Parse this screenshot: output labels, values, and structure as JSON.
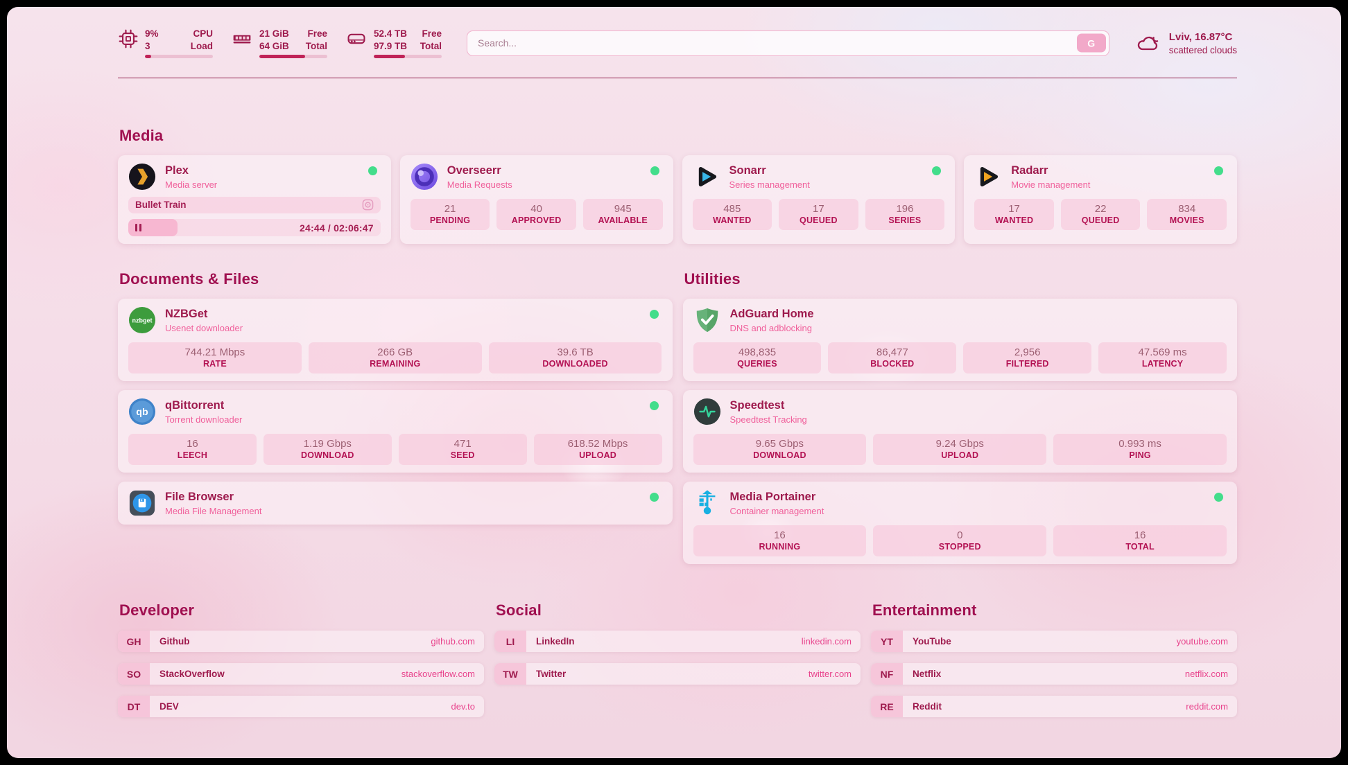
{
  "system_widgets": {
    "cpu": {
      "value_top": "9%",
      "value_bottom": "3",
      "label_top": "CPU",
      "label_bottom": "Load",
      "bar_pct": 9
    },
    "memory": {
      "value_top": "21 GiB",
      "value_bottom": "64 GiB",
      "label_top": "Free",
      "label_bottom": "Total",
      "bar_pct": 67
    },
    "disk": {
      "value_top": "52.4 TB",
      "value_bottom": "97.9 TB",
      "label_top": "Free",
      "label_bottom": "Total",
      "bar_pct": 46
    }
  },
  "search": {
    "placeholder": "Search...",
    "provider_button": "G"
  },
  "weather": {
    "location_temp": "Lviv, 16.87°C",
    "condition": "scattered clouds"
  },
  "service_groups": [
    {
      "title": "Media",
      "cards": [
        {
          "icon": "plex-icon",
          "title": "Plex",
          "subtitle": "Media server",
          "online": true,
          "now_playing": {
            "title": "Bullet Train",
            "time": "24:44 / 02:06:47",
            "progress_pct": 19.5
          }
        },
        {
          "icon": "overseerr-icon",
          "title": "Overseerr",
          "subtitle": "Media Requests",
          "online": true,
          "stats": [
            {
              "value": "21",
              "label": "PENDING"
            },
            {
              "value": "40",
              "label": "APPROVED"
            },
            {
              "value": "945",
              "label": "AVAILABLE"
            }
          ]
        },
        {
          "icon": "sonarr-icon",
          "title": "Sonarr",
          "subtitle": "Series management",
          "online": true,
          "stats": [
            {
              "value": "485",
              "label": "WANTED"
            },
            {
              "value": "17",
              "label": "QUEUED"
            },
            {
              "value": "196",
              "label": "SERIES"
            }
          ]
        },
        {
          "icon": "radarr-icon",
          "title": "Radarr",
          "subtitle": "Movie management",
          "online": true,
          "stats": [
            {
              "value": "17",
              "label": "WANTED"
            },
            {
              "value": "22",
              "label": "QUEUED"
            },
            {
              "value": "834",
              "label": "MOVIES"
            }
          ]
        }
      ]
    },
    {
      "title": "Documents & Files",
      "cards": [
        {
          "icon": "nzbget-icon",
          "title": "NZBGet",
          "subtitle": "Usenet downloader",
          "online": true,
          "stats": [
            {
              "value": "744.21 Mbps",
              "label": "RATE"
            },
            {
              "value": "266 GB",
              "label": "REMAINING"
            },
            {
              "value": "39.6 TB",
              "label": "DOWNLOADED"
            }
          ]
        },
        {
          "icon": "qbittorrent-icon",
          "title": "qBittorrent",
          "subtitle": "Torrent downloader",
          "online": true,
          "stats": [
            {
              "value": "16",
              "label": "LEECH"
            },
            {
              "value": "1.19 Gbps",
              "label": "DOWNLOAD"
            },
            {
              "value": "471",
              "label": "SEED"
            },
            {
              "value": "618.52 Mbps",
              "label": "UPLOAD"
            }
          ]
        },
        {
          "icon": "filebrowser-icon",
          "title": "File Browser",
          "subtitle": "Media File Management",
          "online": true,
          "stats": []
        }
      ]
    },
    {
      "title": "Utilities",
      "cards": [
        {
          "icon": "adguard-icon",
          "title": "AdGuard Home",
          "subtitle": "DNS and adblocking",
          "online": false,
          "stats": [
            {
              "value": "498,835",
              "label": "QUERIES"
            },
            {
              "value": "86,477",
              "label": "BLOCKED"
            },
            {
              "value": "2,956",
              "label": "FILTERED"
            },
            {
              "value": "47.569 ms",
              "label": "LATENCY"
            }
          ]
        },
        {
          "icon": "speedtest-icon",
          "title": "Speedtest",
          "subtitle": "Speedtest Tracking",
          "online": false,
          "stats": [
            {
              "value": "9.65 Gbps",
              "label": "DOWNLOAD"
            },
            {
              "value": "9.24 Gbps",
              "label": "UPLOAD"
            },
            {
              "value": "0.993 ms",
              "label": "PING"
            }
          ]
        },
        {
          "icon": "portainer-icon",
          "title": "Media Portainer",
          "subtitle": "Container management",
          "online": true,
          "stats": [
            {
              "value": "16",
              "label": "RUNNING"
            },
            {
              "value": "0",
              "label": "STOPPED"
            },
            {
              "value": "16",
              "label": "TOTAL"
            }
          ]
        }
      ]
    }
  ],
  "bookmark_groups": [
    {
      "title": "Developer",
      "links": [
        {
          "abbr": "GH",
          "name": "Github",
          "url": "github.com"
        },
        {
          "abbr": "SO",
          "name": "StackOverflow",
          "url": "stackoverflow.com"
        },
        {
          "abbr": "DT",
          "name": "DEV",
          "url": "dev.to"
        }
      ]
    },
    {
      "title": "Social",
      "links": [
        {
          "abbr": "LI",
          "name": "LinkedIn",
          "url": "linkedin.com"
        },
        {
          "abbr": "TW",
          "name": "Twitter",
          "url": "twitter.com"
        }
      ]
    },
    {
      "title": "Entertainment",
      "links": [
        {
          "abbr": "YT",
          "name": "YouTube",
          "url": "youtube.com"
        },
        {
          "abbr": "NF",
          "name": "Netflix",
          "url": "netflix.com"
        },
        {
          "abbr": "RE",
          "name": "Reddit",
          "url": "reddit.com"
        }
      ]
    }
  ],
  "colors": {
    "accent": "#9e1a4d",
    "subtitle_pink": "#f0609b",
    "status_online": "#43dd8b",
    "stat_label": "#b31253",
    "link_url": "#e8438c",
    "bar_fill": "#c02358"
  }
}
